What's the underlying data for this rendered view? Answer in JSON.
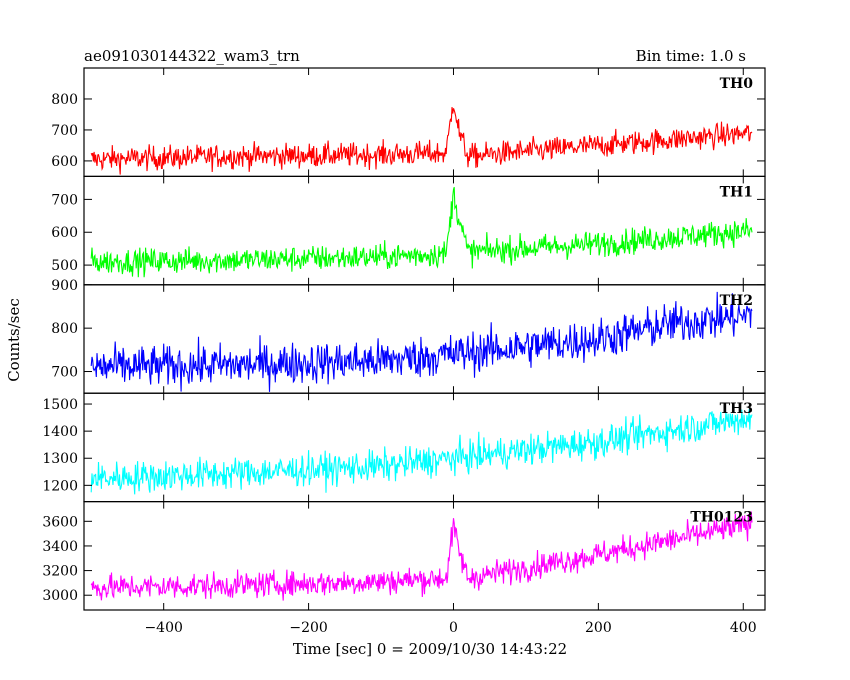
{
  "header": {
    "title": "ae091030144322_wam3_trn",
    "bin_time": "Bin time: 1.0 s"
  },
  "chart_data": {
    "type": "line",
    "xlabel": "Time [sec] 0 = 2009/10/30 14:43:22",
    "ylabel": "Counts/sec",
    "xlim": [
      -510,
      430
    ],
    "x_ticks": [
      -400,
      -200,
      0,
      200,
      400
    ],
    "x_tick_labels": [
      "−400",
      "−200",
      "0",
      "200",
      "400"
    ],
    "bin_time_s": 1.0,
    "x_range": [
      -500,
      412
    ],
    "series": [
      {
        "name": "TH0",
        "color": "#ff0000",
        "ylim": [
          550,
          900
        ],
        "y_ticks": [
          600,
          700,
          800
        ],
        "y_tick_labels": [
          "600",
          "700",
          "800"
        ],
        "trend": [
          [
            -500,
            605
          ],
          [
            -300,
            615
          ],
          [
            -100,
            620
          ],
          [
            -10,
            625
          ],
          [
            0,
            800
          ],
          [
            8,
            690
          ],
          [
            20,
            615
          ],
          [
            200,
            650
          ],
          [
            412,
            690
          ]
        ],
        "noise": 28
      },
      {
        "name": "TH1",
        "color": "#00ff00",
        "ylim": [
          440,
          770
        ],
        "y_ticks": [
          500,
          600,
          700
        ],
        "y_tick_labels": [
          "500",
          "600",
          "700"
        ],
        "trend": [
          [
            -500,
            510
          ],
          [
            -300,
            515
          ],
          [
            -100,
            525
          ],
          [
            -10,
            535
          ],
          [
            0,
            720
          ],
          [
            8,
            640
          ],
          [
            20,
            540
          ],
          [
            200,
            565
          ],
          [
            412,
            605
          ]
        ],
        "noise": 28
      },
      {
        "name": "TH2",
        "color": "#0000ff",
        "ylim": [
          650,
          900
        ],
        "y_ticks": [
          700,
          800,
          900
        ],
        "y_tick_labels": [
          "700",
          "800",
          "900"
        ],
        "trend": [
          [
            -500,
            710
          ],
          [
            -300,
            715
          ],
          [
            -100,
            725
          ],
          [
            0,
            740
          ],
          [
            200,
            775
          ],
          [
            300,
            810
          ],
          [
            412,
            830
          ]
        ],
        "noise": 34
      },
      {
        "name": "TH3",
        "color": "#00ffff",
        "ylim": [
          1140,
          1540
        ],
        "y_ticks": [
          1200,
          1300,
          1400,
          1500
        ],
        "y_tick_labels": [
          "1200",
          "1300",
          "1400",
          "1500"
        ],
        "trend": [
          [
            -500,
            1225
          ],
          [
            -300,
            1245
          ],
          [
            -100,
            1270
          ],
          [
            0,
            1300
          ],
          [
            200,
            1360
          ],
          [
            412,
            1450
          ]
        ],
        "noise": 42
      },
      {
        "name": "TH0123",
        "color": "#ff00ff",
        "ylim": [
          2880,
          3760
        ],
        "y_ticks": [
          3000,
          3200,
          3400,
          3600
        ],
        "y_tick_labels": [
          "3000",
          "3200",
          "3400",
          "3600"
        ],
        "trend": [
          [
            -500,
            3060
          ],
          [
            -300,
            3080
          ],
          [
            -100,
            3110
          ],
          [
            -10,
            3140
          ],
          [
            0,
            3560
          ],
          [
            8,
            3350
          ],
          [
            20,
            3140
          ],
          [
            200,
            3330
          ],
          [
            412,
            3580
          ]
        ],
        "noise": 75
      }
    ]
  }
}
